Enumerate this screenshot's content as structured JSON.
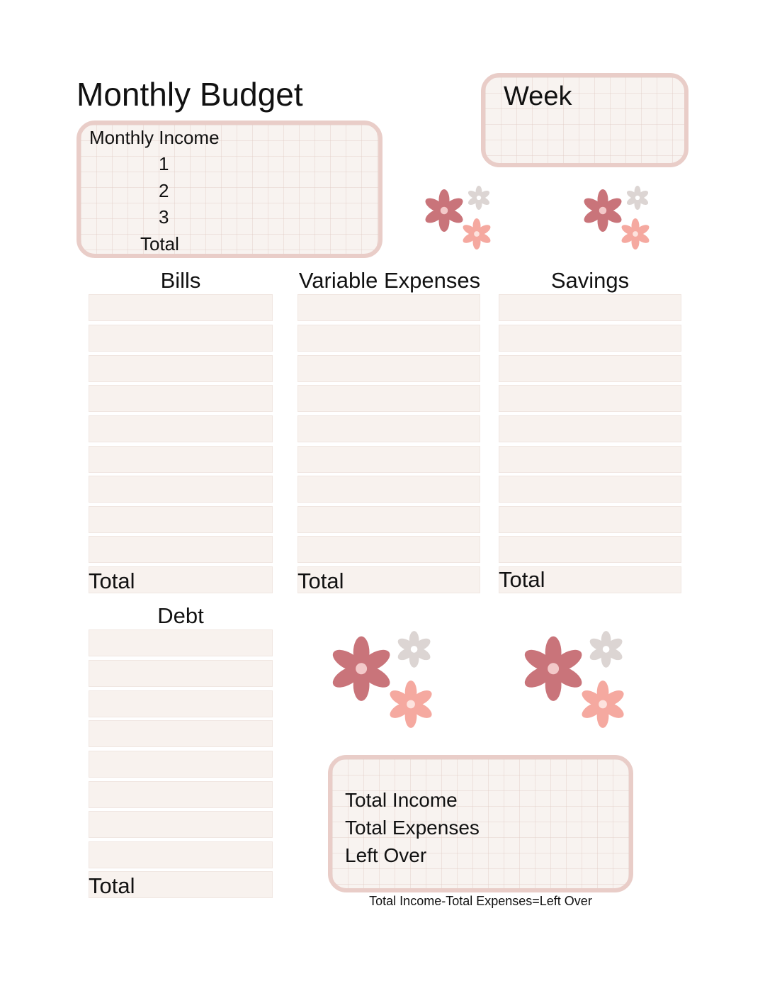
{
  "header": {
    "title": "Monthly Budget"
  },
  "week": {
    "label": "Week"
  },
  "income": {
    "heading": "Monthly Income",
    "lines": [
      "1",
      "2",
      "3",
      "Total"
    ]
  },
  "sections": {
    "bills": {
      "heading": "Bills",
      "total_label": "Total"
    },
    "variable": {
      "heading": "Variable Expenses",
      "total_label": "Total"
    },
    "savings": {
      "heading": "Savings",
      "total_label": "Total"
    },
    "debt": {
      "heading": "Debt",
      "total_label": "Total"
    }
  },
  "summary": {
    "lines": [
      "Total Income",
      "Total Expenses",
      "Left Over"
    ],
    "formula": "Total Income-Total Expenses=Left Over"
  },
  "colors": {
    "box_border": "#e9cdc8",
    "cell_fill": "#f8f2ee",
    "flower_rose": "#c9747a",
    "flower_grey": "#dcd5d3",
    "flower_peach": "#f5a9a0"
  }
}
